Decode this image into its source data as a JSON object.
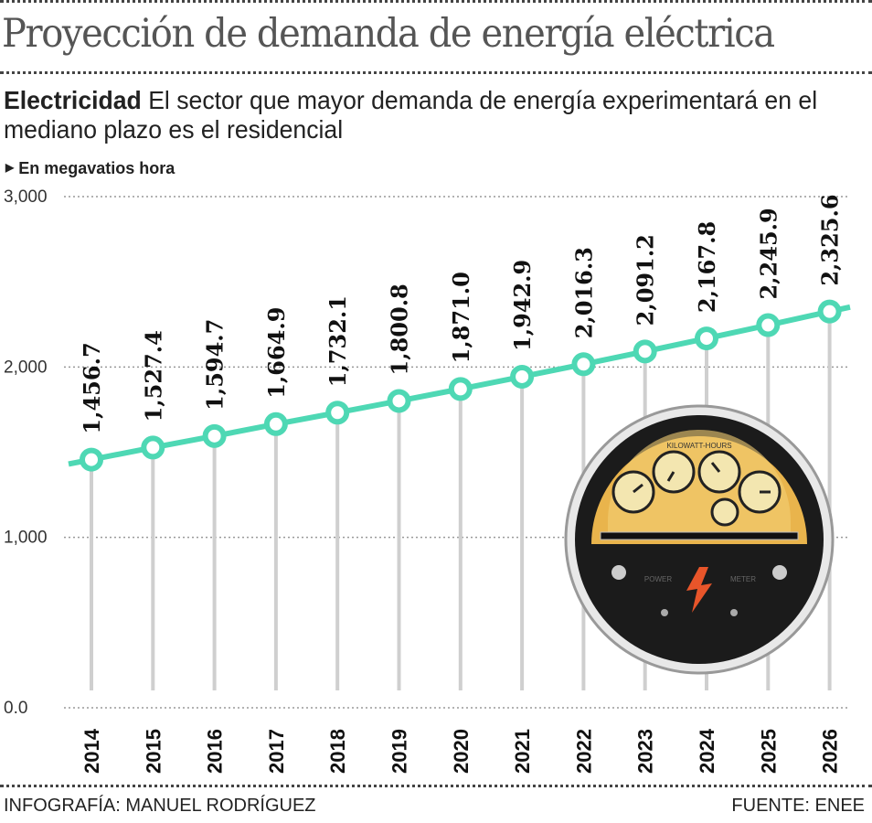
{
  "header": {
    "title": "Proyección de demanda de energía eléctrica",
    "subtitle_bold": "Electricidad",
    "subtitle_text": " El sector que mayor demanda de energía experimentará en el mediano plazo es el residencial",
    "unit_label": "En megavatios hora"
  },
  "chart_data": {
    "type": "line",
    "title": "Proyección de demanda de energía eléctrica",
    "ylabel": "En megavatios hora",
    "xlabel": "",
    "ylim": [
      0,
      3000
    ],
    "y_ticks": [
      "0.0",
      "1,000",
      "2,000",
      "3,000"
    ],
    "y_tick_values": [
      0,
      1000,
      2000,
      3000
    ],
    "grid": "horizontal dotted",
    "categories": [
      "2014",
      "2015",
      "2016",
      "2017",
      "2018",
      "2019",
      "2020",
      "2021",
      "2022",
      "2023",
      "2024",
      "2025",
      "2026"
    ],
    "values": [
      1456.7,
      1527.4,
      1594.7,
      1664.9,
      1732.1,
      1800.8,
      1871.0,
      1942.9,
      2016.3,
      2091.2,
      2167.8,
      2245.9,
      2325.6
    ],
    "data_labels": [
      "1,456.7",
      "1,527.4",
      "1,594.7",
      "1,664.9",
      "1,732.1",
      "1,800.8",
      "1,871.0",
      "1,942.9",
      "2,016.3",
      "2,091.2",
      "2,167.8",
      "2,245.9",
      "2,325.6"
    ],
    "line_color": "#4ed8b4",
    "drop_line_color": "#cfcfcf"
  },
  "illustration": {
    "name": "power-meter-icon",
    "lettering": [
      "KILOWATT-HOURS",
      "POWER",
      "METER"
    ]
  },
  "footer": {
    "credit": "INFOGRAFÍA: MANUEL RODRÍGUEZ",
    "source": "FUENTE: ENEE"
  }
}
